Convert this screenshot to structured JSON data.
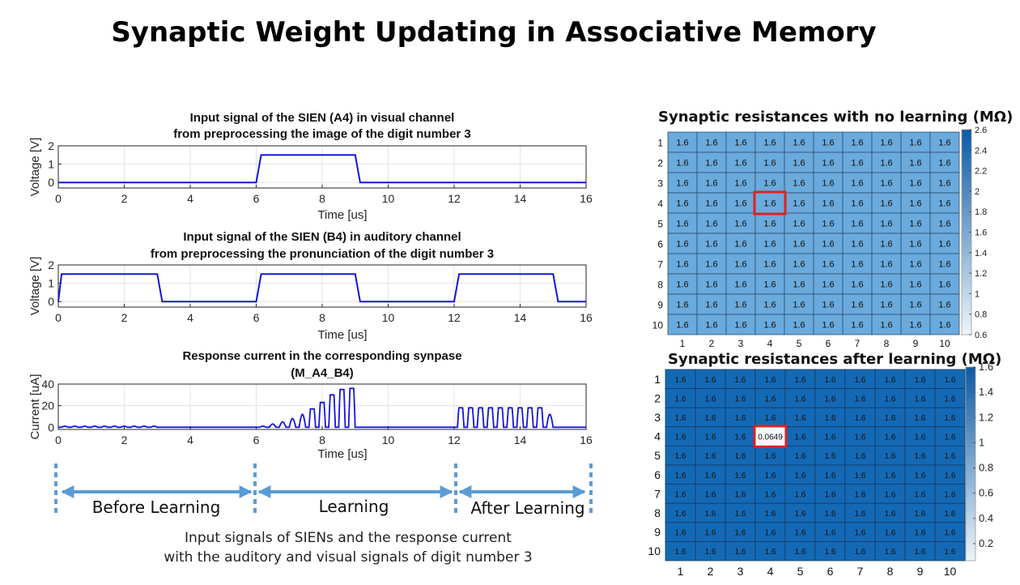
{
  "page": {
    "title": "Synaptic Weight Updating in Associative Memory",
    "caption_line1": "Input signals of SIENs and the response current",
    "caption_line2": "with the auditory and visual signals of digit number 3"
  },
  "phases": {
    "before": "Before Learning",
    "learning": "Learning",
    "after": "After Learning"
  },
  "colors": {
    "signal_line": "#1515d8",
    "phase_arrow": "#5b9bd5",
    "heatmap_light": "#6aaadc",
    "heatmap_dark": "#1469b5",
    "highlight": "#e02020"
  },
  "chart_data": [
    {
      "type": "line",
      "title_line1": "Input signal of the SIEN (A4) in visual channel",
      "title_line2": "from preprocessing the image of the digit number 3",
      "xlabel": "Time [us]",
      "ylabel": "Voltage [V]",
      "xlim": [
        0,
        16
      ],
      "ylim": [
        -0.3,
        2
      ],
      "xticks": [
        0,
        2,
        4,
        6,
        8,
        10,
        12,
        14,
        16
      ],
      "yticks": [
        0,
        1,
        2
      ],
      "grid": true,
      "x": [
        0,
        6,
        6.15,
        9.0,
        9.15,
        16
      ],
      "y": [
        0,
        0,
        1.5,
        1.5,
        0,
        0
      ]
    },
    {
      "type": "line",
      "title_line1": "Input signal of the SIEN (B4) in auditory channel",
      "title_line2": "from preprocessing the pronunciation of the digit number 3",
      "xlabel": "Time [us]",
      "ylabel": "Voltage [V]",
      "xlim": [
        0,
        16
      ],
      "ylim": [
        -0.3,
        2
      ],
      "xticks": [
        0,
        2,
        4,
        6,
        8,
        10,
        12,
        14,
        16
      ],
      "yticks": [
        0,
        1,
        2
      ],
      "grid": true,
      "x": [
        0,
        0.1,
        3.0,
        3.15,
        6.0,
        6.15,
        9.0,
        9.15,
        12.0,
        12.15,
        15.0,
        15.15,
        16
      ],
      "y": [
        0,
        1.5,
        1.5,
        0,
        0,
        1.5,
        1.5,
        0,
        0,
        1.5,
        1.5,
        0,
        0
      ]
    },
    {
      "type": "line",
      "title_line1": "Response current in the corresponding synpase",
      "title_line2": "(M_A4_B4)",
      "xlabel": "Time [us]",
      "ylabel": "Current [uA]",
      "xlim": [
        0,
        16
      ],
      "ylim": [
        -2,
        40
      ],
      "xticks": [
        0,
        2,
        4,
        6,
        8,
        10,
        12,
        14,
        16
      ],
      "yticks": [
        0,
        20,
        40
      ],
      "grid": true,
      "pulse_trains": [
        {
          "start": 0.1,
          "period": 0.3,
          "count": 10,
          "width": 0.2,
          "peaks": [
            1,
            1,
            1,
            1,
            1,
            1,
            1,
            1,
            1,
            1
          ]
        },
        {
          "start": 6.1,
          "period": 0.3,
          "count": 10,
          "width": 0.2,
          "peaks": [
            1,
            3,
            5,
            8,
            12,
            17,
            23,
            30,
            35,
            36
          ]
        },
        {
          "start": 12.1,
          "period": 0.3,
          "count": 10,
          "width": 0.2,
          "peaks": [
            18,
            18,
            18,
            18,
            18,
            18,
            18,
            18,
            18,
            12
          ]
        }
      ]
    },
    {
      "type": "heatmap",
      "title": "Synaptic resistances with no learning (MΩ)",
      "rows": [
        1,
        2,
        3,
        4,
        5,
        6,
        7,
        8,
        9,
        10
      ],
      "cols": [
        1,
        2,
        3,
        4,
        5,
        6,
        7,
        8,
        9,
        10
      ],
      "values": [
        [
          "1.6",
          "1.6",
          "1.6",
          "1.6",
          "1.6",
          "1.6",
          "1.6",
          "1.6",
          "1.6",
          "1.6"
        ],
        [
          "1.6",
          "1.6",
          "1.6",
          "1.6",
          "1.6",
          "1.6",
          "1.6",
          "1.6",
          "1.6",
          "1.6"
        ],
        [
          "1.6",
          "1.6",
          "1.6",
          "1.6",
          "1.6",
          "1.6",
          "1.6",
          "1.6",
          "1.6",
          "1.6"
        ],
        [
          "1.6",
          "1.6",
          "1.6",
          "1.6",
          "1.6",
          "1.6",
          "1.6",
          "1.6",
          "1.6",
          "1.6"
        ],
        [
          "1.6",
          "1.6",
          "1.6",
          "1.6",
          "1.6",
          "1.6",
          "1.6",
          "1.6",
          "1.6",
          "1.6"
        ],
        [
          "1.6",
          "1.6",
          "1.6",
          "1.6",
          "1.6",
          "1.6",
          "1.6",
          "1.6",
          "1.6",
          "1.6"
        ],
        [
          "1.6",
          "1.6",
          "1.6",
          "1.6",
          "1.6",
          "1.6",
          "1.6",
          "1.6",
          "1.6",
          "1.6"
        ],
        [
          "1.6",
          "1.6",
          "1.6",
          "1.6",
          "1.6",
          "1.6",
          "1.6",
          "1.6",
          "1.6",
          "1.6"
        ],
        [
          "1.6",
          "1.6",
          "1.6",
          "1.6",
          "1.6",
          "1.6",
          "1.6",
          "1.6",
          "1.6",
          "1.6"
        ],
        [
          "1.6",
          "1.6",
          "1.6",
          "1.6",
          "1.6",
          "1.6",
          "1.6",
          "1.6",
          "1.6",
          "1.6"
        ]
      ],
      "highlight": {
        "row": 4,
        "col": 4
      },
      "colorbar_range": [
        0.6,
        2.6
      ],
      "colorbar_ticks": [
        "0.6",
        "0.8",
        "1",
        "1.2",
        "1.4",
        "1.6",
        "1.8",
        "2",
        "2.2",
        "2.4",
        "2.6"
      ]
    },
    {
      "type": "heatmap",
      "title": "Synaptic resistances after learning (MΩ)",
      "rows": [
        1,
        2,
        3,
        4,
        5,
        6,
        7,
        8,
        9,
        10
      ],
      "cols": [
        1,
        2,
        3,
        4,
        5,
        6,
        7,
        8,
        9,
        10
      ],
      "values": [
        [
          "1.6",
          "1.6",
          "1.6",
          "1.6",
          "1.6",
          "1.6",
          "1.6",
          "1.6",
          "1.6",
          "1.6"
        ],
        [
          "1.6",
          "1.6",
          "1.6",
          "1.6",
          "1.6",
          "1.6",
          "1.6",
          "1.6",
          "1.6",
          "1.6"
        ],
        [
          "1.6",
          "1.6",
          "1.6",
          "1.6",
          "1.6",
          "1.6",
          "1.6",
          "1.6",
          "1.6",
          "1.6"
        ],
        [
          "1.6",
          "1.6",
          "1.6",
          "0.0649",
          "1.6",
          "1.6",
          "1.6",
          "1.6",
          "1.6",
          "1.6"
        ],
        [
          "1.6",
          "1.6",
          "1.6",
          "1.6",
          "1.6",
          "1.6",
          "1.6",
          "1.6",
          "1.6",
          "1.6"
        ],
        [
          "1.6",
          "1.6",
          "1.6",
          "1.6",
          "1.6",
          "1.6",
          "1.6",
          "1.6",
          "1.6",
          "1.6"
        ],
        [
          "1.6",
          "1.6",
          "1.6",
          "1.6",
          "1.6",
          "1.6",
          "1.6",
          "1.6",
          "1.6",
          "1.6"
        ],
        [
          "1.6",
          "1.6",
          "1.6",
          "1.6",
          "1.6",
          "1.6",
          "1.6",
          "1.6",
          "1.6",
          "1.6"
        ],
        [
          "1.6",
          "1.6",
          "1.6",
          "1.6",
          "1.6",
          "1.6",
          "1.6",
          "1.6",
          "1.6",
          "1.6"
        ],
        [
          "1.6",
          "1.6",
          "1.6",
          "1.6",
          "1.6",
          "1.6",
          "1.6",
          "1.6",
          "1.6",
          "1.6"
        ]
      ],
      "highlight": {
        "row": 4,
        "col": 4
      },
      "colorbar_range": [
        0.0649,
        1.6
      ],
      "colorbar_ticks": [
        "0.2",
        "0.4",
        "0.6",
        "0.8",
        "1",
        "1.2",
        "1.4",
        "1.6"
      ]
    }
  ]
}
